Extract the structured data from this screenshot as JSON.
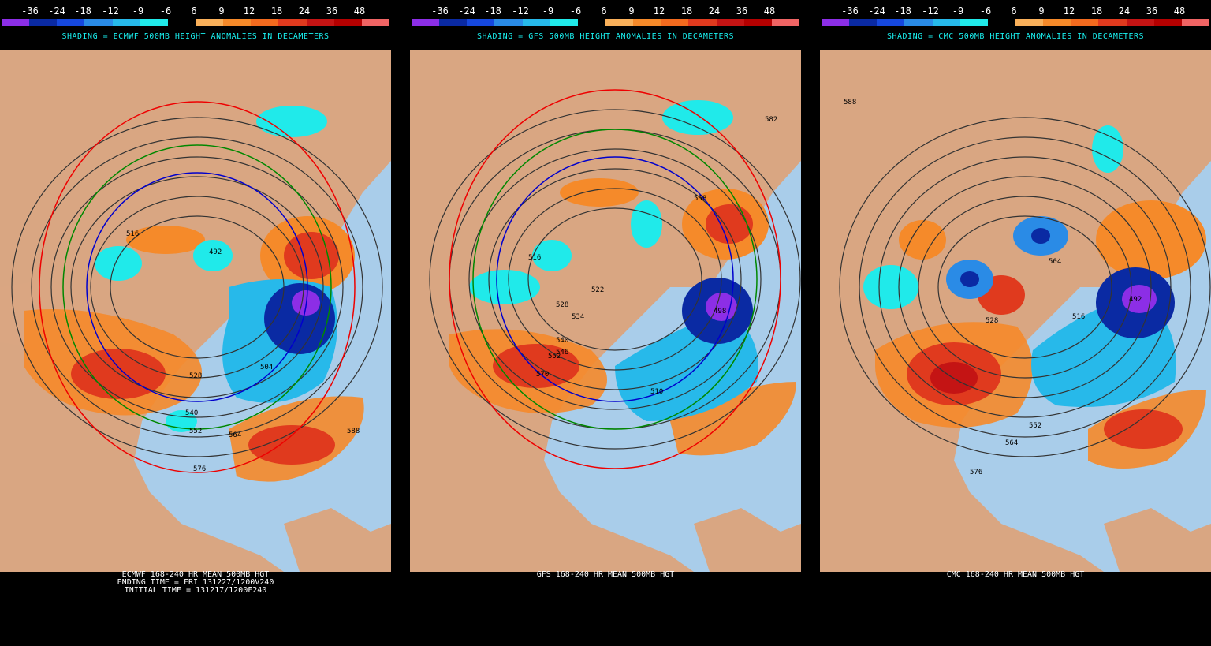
{
  "scale": {
    "labels": [
      "-36",
      "-24",
      "-18",
      "-12",
      "-9",
      "-6",
      "6",
      "9",
      "12",
      "18",
      "24",
      "36",
      "48"
    ],
    "colors": [
      "#8c2ee6",
      "#0a2aa3",
      "#1648de",
      "#2a8be6",
      "#27b9ea",
      "#20eaea",
      "#000000",
      "#f9b05a",
      "#f58a2a",
      "#f26a1e",
      "#e03a1e",
      "#c41414",
      "#b40000",
      "#f06464"
    ]
  },
  "panels": [
    {
      "shading_title": "SHADING = ECMWF 500MB HEIGHT ANOMALIES IN DECAMETERS",
      "footer": [
        "ECMWF 168-240 HR MEAN 500MB HGT",
        "ENDING TIME = FRI 131227/1200V240",
        "INITIAL TIME = 131217/1200F240"
      ],
      "contour_labels": [
        "516",
        "528",
        "540",
        "552",
        "564",
        "576",
        "588",
        "504",
        "492"
      ]
    },
    {
      "shading_title": "SHADING = GFS 500MB HEIGHT ANOMALIES IN DECAMETERS",
      "footer": [
        "GFS 168-240 HR MEAN 500MB HGT"
      ],
      "contour_labels": [
        "516",
        "528",
        "540",
        "552",
        "570",
        "582",
        "510",
        "522",
        "534",
        "546",
        "558",
        "498"
      ]
    },
    {
      "shading_title": "SHADING = CMC 500MB HEIGHT ANOMALIES IN DECAMETERS",
      "footer": [
        "CMC 168-240 HR MEAN 500MB HGT"
      ],
      "contour_labels": [
        "588",
        "504",
        "516",
        "528",
        "552",
        "564",
        "576",
        "492"
      ]
    }
  ]
}
